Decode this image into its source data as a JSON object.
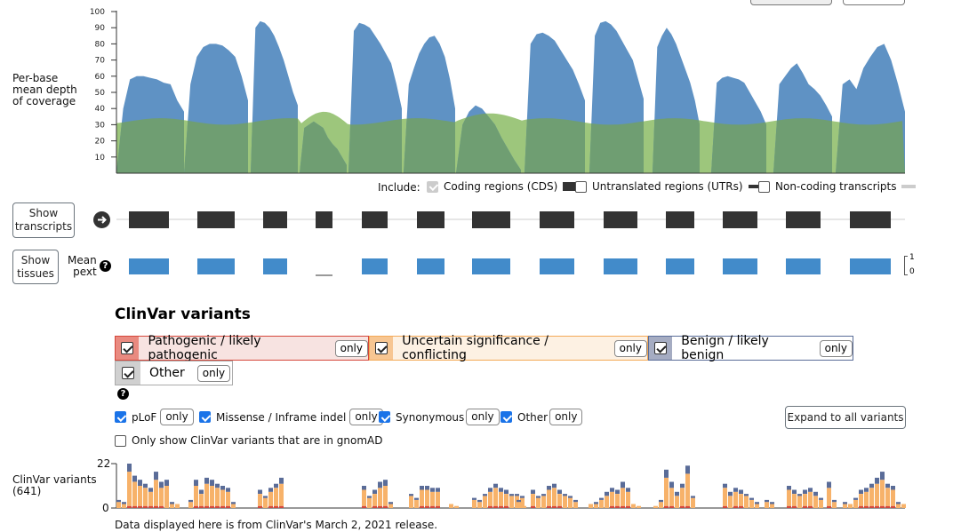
{
  "coverage": {
    "ylabel_lines": [
      "Per-base",
      "mean depth",
      "of coverage"
    ],
    "ticks": [
      "100",
      "90",
      "80",
      "70",
      "60",
      "50",
      "40",
      "30",
      "20",
      "10"
    ],
    "exome_color": "#5f92c4",
    "genome_color": "#9dc67c",
    "include_label": "Include:",
    "include_options": [
      {
        "label": "Coding regions (CDS)",
        "state": "disabled"
      },
      {
        "label": "Untranslated regions (UTRs)",
        "state": "unchecked"
      },
      {
        "label": "Non-coding transcripts",
        "state": "unchecked"
      }
    ]
  },
  "transcripts": {
    "show_transcripts_lines": [
      "Show",
      "transcripts"
    ],
    "show_tissues_lines": [
      "Show",
      "tissues"
    ],
    "mean_pext_lines": [
      "Mean",
      "pext"
    ],
    "pext_scale_top": "1",
    "pext_scale_bottom": "0",
    "exon_color": "#333333",
    "pext_color": "#428bca"
  },
  "clinvar": {
    "heading": "ClinVar variants",
    "categories": [
      {
        "label": "Pathogenic / likely pathogenic",
        "only": "only",
        "bg": "#f7e3e1",
        "border": "#d5473b",
        "boxbg": "#e98a80"
      },
      {
        "label": "Uncertain significance / conflicting",
        "only": "only",
        "bg": "#fdf1e3",
        "border": "#f3a957",
        "boxbg": "#f7c692"
      },
      {
        "label": "Benign / likely benign",
        "only": "only",
        "bg": "#ffffff",
        "border": "#5a6c98",
        "boxbg": "#a5acc2"
      },
      {
        "label": "Other",
        "only": "only",
        "bg": "#ffffff",
        "border": "#aaaaaa",
        "boxbg": "#d0d0d0"
      }
    ],
    "consequence_filters": [
      {
        "label": "pLoF",
        "only": "only"
      },
      {
        "label": "Missense / Inframe indel",
        "only": "only"
      },
      {
        "label": "Synonymous",
        "only": "only"
      },
      {
        "label": "Other",
        "only": "only"
      }
    ],
    "expand_button": "Expand to all variants",
    "gnomad_only_label": "Only show ClinVar variants that are in gnomAD",
    "track_label_lines": [
      "ClinVar variants",
      "(641)"
    ],
    "y_max_label": "22",
    "y_min_label": "0",
    "footer": "Data displayed here is from ClinVar's March 2, 2021 release.",
    "colors": {
      "pathogenic": "#d5473b",
      "uncertain": "#f7b26a",
      "benign": "#5a6c98",
      "other": "#aaaaaa"
    }
  }
}
